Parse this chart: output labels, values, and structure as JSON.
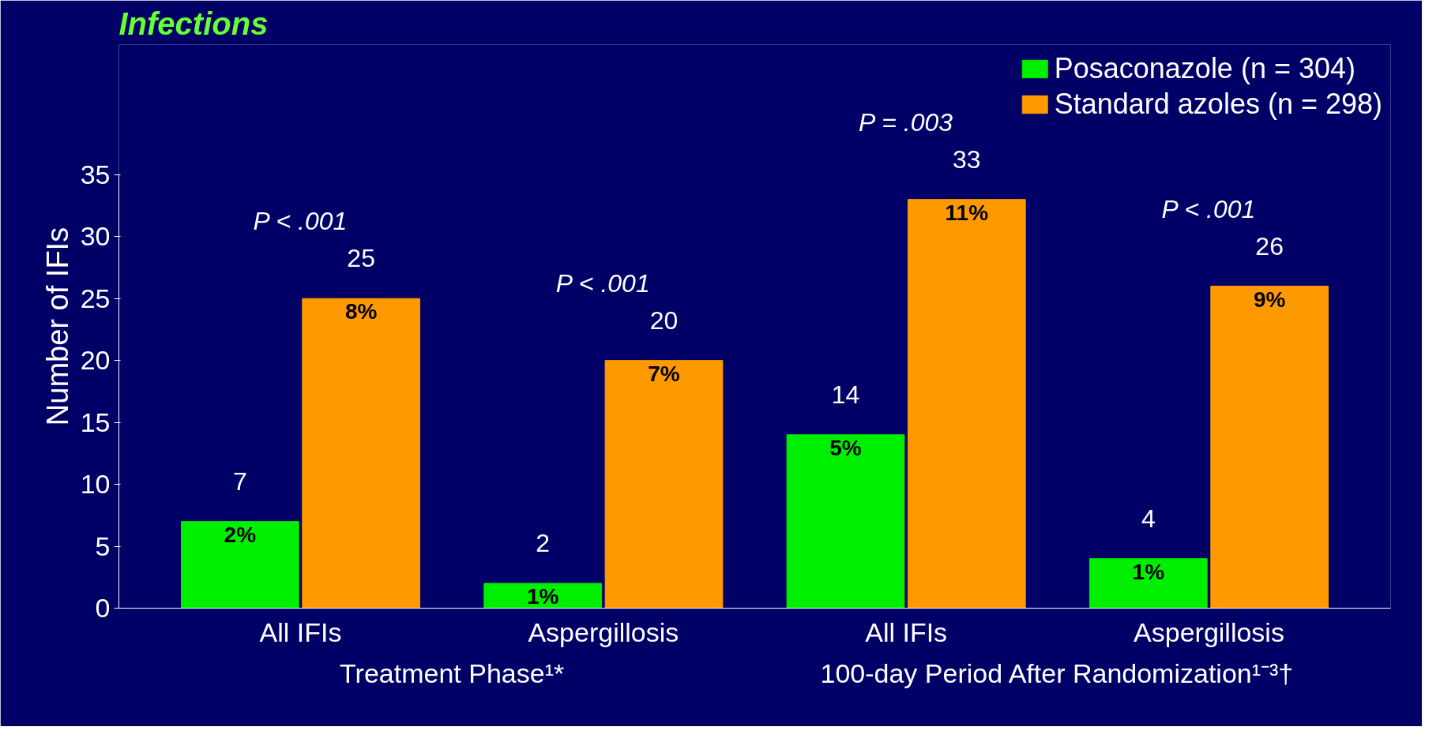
{
  "chart_data": {
    "type": "bar",
    "title": "Infections",
    "ylabel": "Number of IFIs",
    "categories": [
      "All IFIs",
      "Aspergillosis",
      "All IFIs",
      "Aspergillosis"
    ],
    "series": [
      {
        "name": "Posaconazole (n = 304)",
        "color": "#00ee00",
        "values": [
          7,
          2,
          14,
          4
        ]
      },
      {
        "name": "Standard azoles (n = 298)",
        "color": "#ff9900",
        "values": [
          25,
          20,
          33,
          26
        ]
      }
    ],
    "data_labels": true,
    "annotations": [
      "Treatment Phase¹*",
      "100-day Period After Randomization¹⁻³†",
      "P < .001",
      "P < .001",
      "P = .003",
      "P < .001",
      "2%",
      "1%",
      "5%",
      "1%",
      "8%",
      "7%",
      "11%",
      "9%"
    ],
    "ylim": [
      0,
      35
    ],
    "yticks": [
      0,
      5,
      10,
      15,
      20,
      25,
      30,
      35
    ],
    "legend": "top right",
    "grid": false
  }
}
